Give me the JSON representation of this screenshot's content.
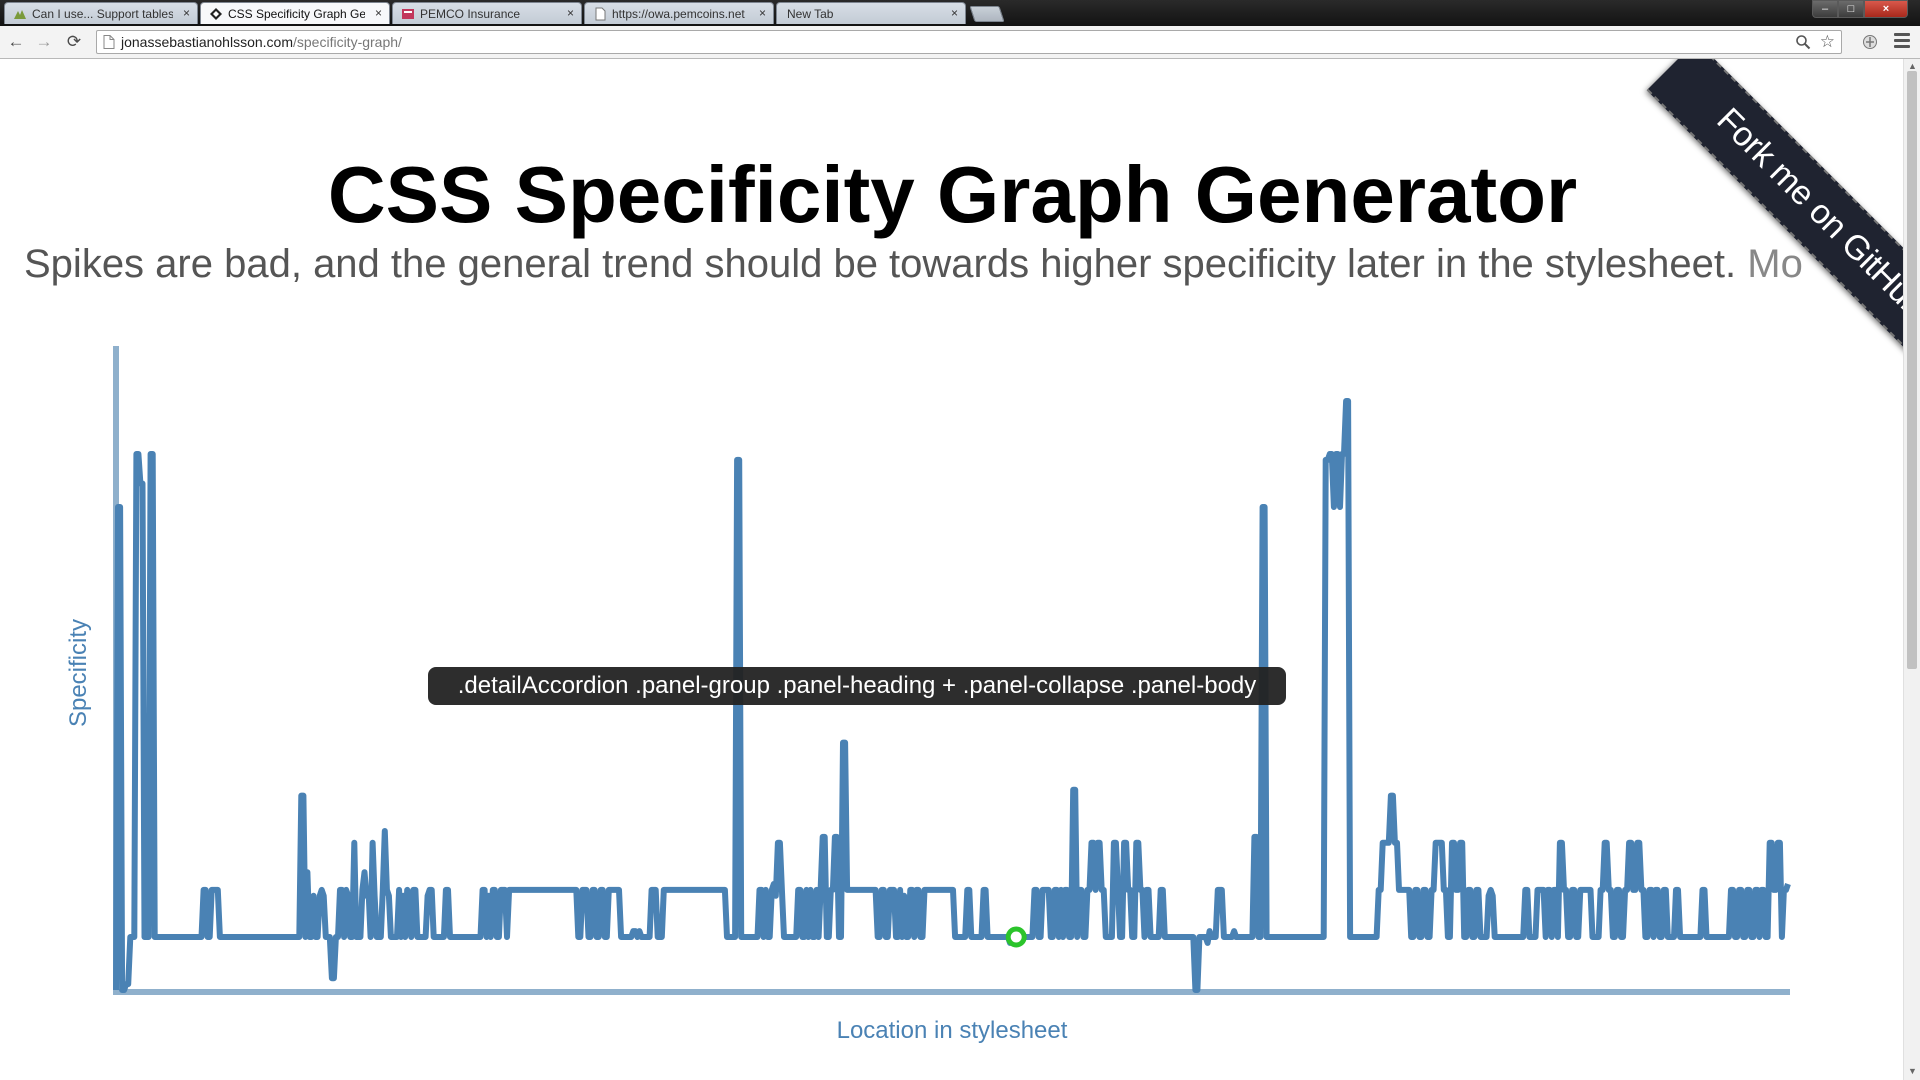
{
  "browser": {
    "tabs": [
      {
        "title": "Can I use... Support tables",
        "icon": "caniuse-icon",
        "active": false
      },
      {
        "title": "CSS Specificity Graph Gen",
        "icon": "diamond-icon",
        "active": true
      },
      {
        "title": "PEMCO Insurance",
        "icon": "pemco-icon",
        "active": false
      },
      {
        "title": "https://owa.pemcoins.net",
        "icon": "page-icon",
        "active": false
      },
      {
        "title": "New Tab",
        "icon": "",
        "active": false
      }
    ],
    "tab_close_glyph": "×",
    "window_buttons": {
      "minimize": "–",
      "maximize": "□",
      "close": "×"
    },
    "nav": {
      "back": "←",
      "forward": "→",
      "reload": "⟳"
    },
    "address": {
      "host": "jonassebastianohlsson.com",
      "path": "/specificity-graph/"
    }
  },
  "page": {
    "title": "CSS Specificity Graph Generator",
    "subtitle": "Spikes are bad, and the general trend should be towards higher specificity later in the stylesheet.",
    "subtitle_more": "Mo",
    "ribbon": "Fork me on GitHub"
  },
  "tooltip": {
    "text": ".detailAccordion .panel-group .panel-heading + .panel-collapse .panel-body"
  },
  "chart_data": {
    "type": "line",
    "xlabel": "Location in stylesheet",
    "ylabel": "Specificity",
    "xlim": [
      0,
      1000
    ],
    "ylim": [
      0,
      100
    ],
    "line_color": "#4a82b4",
    "axis_color": "#8fb0cc",
    "highlight_color": "#2bc42b",
    "highlight_index": 442,
    "series": [
      {
        "values": [
          0,
          82,
          82,
          0,
          0,
          1,
          1,
          9,
          9,
          9,
          91,
          91,
          86,
          86,
          9,
          9,
          9,
          91,
          91,
          9,
          9,
          9,
          9,
          9,
          9,
          9,
          9,
          9,
          9,
          9,
          9,
          9,
          9,
          9,
          9,
          9,
          9,
          9,
          9,
          9,
          9,
          9,
          9,
          17,
          17,
          9,
          9,
          17,
          17,
          17,
          17,
          9,
          9,
          9,
          9,
          9,
          9,
          9,
          9,
          9,
          9,
          9,
          9,
          9,
          9,
          9,
          9,
          9,
          9,
          9,
          9,
          9,
          9,
          9,
          9,
          9,
          9,
          9,
          9,
          9,
          9,
          9,
          9,
          9,
          9,
          9,
          9,
          9,
          9,
          9,
          9,
          33,
          33,
          9,
          20,
          9,
          9,
          16,
          9,
          9,
          16,
          17,
          16,
          9,
          9,
          9,
          2,
          2,
          9,
          9,
          17,
          17,
          9,
          17,
          16,
          9,
          9,
          25,
          9,
          9,
          9,
          17,
          20,
          16,
          17,
          9,
          25,
          16,
          9,
          9,
          9,
          17,
          27,
          17,
          16,
          9,
          9,
          9,
          9,
          17,
          9,
          16,
          9,
          17,
          16,
          9,
          17,
          17,
          9,
          9,
          9,
          9,
          9,
          16,
          17,
          17,
          9,
          9,
          9,
          9,
          9,
          9,
          17,
          17,
          9,
          9,
          9,
          9,
          9,
          9,
          9,
          9,
          9,
          9,
          9,
          9,
          9,
          9,
          9,
          9,
          17,
          17,
          9,
          16,
          9,
          17,
          17,
          9,
          9,
          17,
          17,
          17,
          9,
          17,
          17,
          17,
          17,
          17,
          17,
          17,
          17,
          17,
          17,
          17,
          17,
          17,
          17,
          17,
          17,
          17,
          17,
          17,
          17,
          17,
          17,
          17,
          17,
          17,
          17,
          17,
          17,
          17,
          17,
          17,
          17,
          17,
          17,
          9,
          9,
          17,
          17,
          17,
          9,
          9,
          17,
          17,
          9,
          9,
          17,
          17,
          9,
          9,
          17,
          17,
          17,
          17,
          17,
          17,
          9,
          9,
          9,
          9,
          9,
          9,
          10,
          10,
          9,
          10,
          9,
          9,
          9,
          9,
          9,
          17,
          17,
          17,
          9,
          9,
          9,
          17,
          17,
          17,
          17,
          17,
          17,
          17,
          17,
          17,
          17,
          17,
          17,
          17,
          17,
          17,
          17,
          17,
          17,
          17,
          17,
          17,
          17,
          17,
          17,
          17,
          17,
          17,
          17,
          17,
          17,
          17,
          9,
          9,
          9,
          9,
          9,
          90,
          90,
          9,
          9,
          9,
          9,
          9,
          9,
          9,
          9,
          9,
          17,
          17,
          9,
          17,
          9,
          9,
          17,
          18,
          16,
          25,
          25,
          17,
          9,
          9,
          9,
          9,
          9,
          9,
          9,
          17,
          17,
          9,
          9,
          17,
          9,
          17,
          9,
          9,
          17,
          9,
          17,
          26,
          26,
          9,
          9,
          17,
          17,
          26,
          26,
          9,
          9,
          42,
          42,
          17,
          17,
          17,
          17,
          17,
          17,
          17,
          17,
          17,
          17,
          17,
          17,
          17,
          17,
          17,
          9,
          9,
          17,
          17,
          9,
          9,
          17,
          17,
          17,
          9,
          9,
          17,
          9,
          16,
          9,
          9,
          17,
          17,
          9,
          17,
          17,
          9,
          9,
          17,
          17,
          17,
          17,
          17,
          17,
          17,
          17,
          17,
          17,
          17,
          17,
          17,
          17,
          17,
          9,
          9,
          9,
          9,
          9,
          9,
          17,
          17,
          9,
          9,
          9,
          9,
          9,
          9,
          17,
          17,
          9,
          9,
          9,
          9,
          9,
          9,
          9,
          9,
          9,
          9,
          9,
          8,
          10,
          9,
          9,
          9,
          9,
          9,
          9,
          9,
          9,
          9,
          9,
          17,
          17,
          9,
          9,
          17,
          17,
          17,
          17,
          9,
          9,
          17,
          17,
          9,
          17,
          9,
          17,
          17,
          9,
          9,
          34,
          34,
          9,
          17,
          17,
          9,
          9,
          17,
          17,
          25,
          25,
          17,
          25,
          25,
          17,
          17,
          9,
          9,
          9,
          9,
          25,
          25,
          17,
          9,
          9,
          25,
          25,
          17,
          17,
          9,
          9,
          25,
          25,
          17,
          17,
          9,
          17,
          17,
          9,
          9,
          9,
          9,
          9,
          17,
          17,
          9,
          9,
          9,
          9,
          9,
          9,
          9,
          9,
          9,
          9,
          9,
          9,
          9,
          9,
          9,
          0,
          0,
          9,
          9,
          9,
          9,
          8,
          10,
          9,
          9,
          9,
          17,
          17,
          17,
          9,
          9,
          9,
          9,
          9,
          10,
          9,
          9,
          9,
          9,
          9,
          9,
          9,
          9,
          9,
          26,
          26,
          9,
          9,
          82,
          82,
          9,
          9,
          9,
          9,
          9,
          9,
          9,
          9,
          9,
          9,
          9,
          9,
          9,
          9,
          9,
          9,
          9,
          9,
          9,
          9,
          9,
          9,
          9,
          9,
          9,
          9,
          9,
          9,
          9,
          90,
          90,
          91,
          91,
          82,
          91,
          91,
          82,
          91,
          91,
          100,
          100,
          9,
          9,
          9,
          9,
          9,
          9,
          9,
          9,
          9,
          9,
          9,
          9,
          9,
          9,
          17,
          17,
          25,
          25,
          25,
          25,
          33,
          33,
          25,
          25,
          17,
          17,
          17,
          17,
          17,
          17,
          9,
          9,
          17,
          17,
          9,
          9,
          17,
          17,
          9,
          9,
          17,
          17,
          25,
          25,
          25,
          25,
          17,
          17,
          9,
          9,
          25,
          25,
          17,
          17,
          25,
          25,
          9,
          9,
          17,
          17,
          9,
          9,
          17,
          17,
          9,
          9,
          9,
          9,
          16,
          17,
          16,
          9,
          9,
          9,
          9,
          9,
          9,
          9,
          9,
          9,
          9,
          9,
          9,
          9,
          9,
          9,
          17,
          17,
          9,
          9,
          9,
          9,
          17,
          17,
          17,
          17,
          9,
          17,
          17,
          9,
          17,
          17,
          9,
          25,
          25,
          17,
          17,
          9,
          9,
          17,
          17,
          9,
          9,
          17,
          17,
          17,
          17,
          17,
          17,
          9,
          9,
          9,
          9,
          17,
          17,
          25,
          25,
          17,
          17,
          9,
          9,
          17,
          17,
          9,
          9,
          17,
          17,
          25,
          25,
          17,
          17,
          25,
          25,
          17,
          17,
          9,
          9,
          17,
          17,
          9,
          17,
          17,
          9,
          9,
          17,
          17,
          9,
          9,
          9,
          9,
          17,
          17,
          9,
          9,
          9,
          9,
          9,
          9,
          9,
          9,
          9,
          9,
          9,
          17,
          17,
          9,
          9,
          9,
          9,
          9,
          9,
          9,
          9,
          9,
          9,
          9,
          9,
          17,
          17,
          9,
          9,
          17,
          17,
          9,
          9,
          17,
          17,
          9,
          9,
          17,
          17,
          9,
          17,
          17,
          9,
          9,
          25,
          25,
          17,
          17,
          25,
          25,
          9,
          17,
          17,
          18
        ]
      }
    ]
  }
}
